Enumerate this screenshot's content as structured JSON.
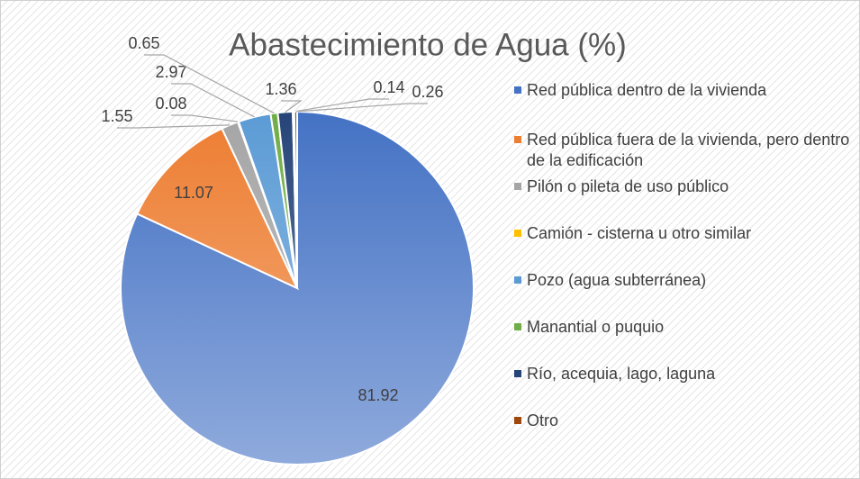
{
  "chart_data": {
    "type": "pie",
    "title": "Abastecimiento de Agua (%)",
    "categories": [
      "Red pública dentro de la vivienda",
      "Red pública fuera de la vivienda, pero dentro de la edificación",
      "Pilón o pileta de uso público",
      "Camión - cisterna u otro similar",
      "Pozo (agua subterránea)",
      "Manantial o puquio",
      "Río, acequia, lago, laguna",
      "Otro",
      null
    ],
    "values": [
      81.92,
      11.07,
      1.55,
      0.08,
      2.97,
      0.65,
      1.36,
      0.14,
      0.26
    ],
    "colors": [
      "#4472c4",
      "#ed7d31",
      "#a5a5a5",
      "#ffc000",
      "#5b9bd5",
      "#70ad47",
      "#264478",
      "#9e480e",
      "#636363"
    ],
    "legend": "right"
  }
}
